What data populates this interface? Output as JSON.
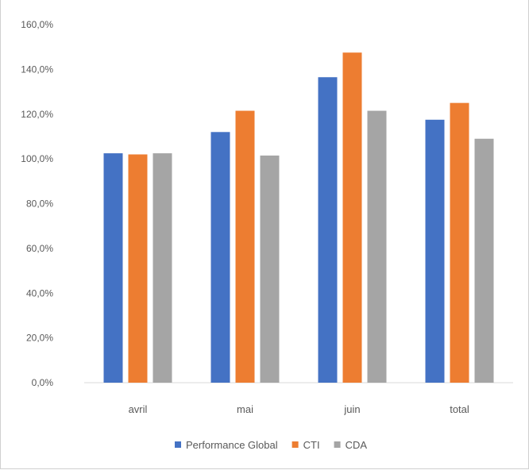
{
  "chart_data": {
    "type": "bar",
    "title": "",
    "xlabel": "",
    "ylabel": "",
    "categories": [
      "avril",
      "mai",
      "juin",
      "total"
    ],
    "series": [
      {
        "name": "Performance Global",
        "color": "#4472c4",
        "values": [
          102.5,
          112.0,
          136.5,
          117.5
        ]
      },
      {
        "name": "CTI",
        "color": "#ed7d31",
        "values": [
          102.0,
          121.5,
          147.5,
          125.0
        ]
      },
      {
        "name": "CDA",
        "color": "#a5a5a5",
        "values": [
          102.5,
          101.5,
          121.5,
          109.0
        ]
      }
    ],
    "ylim": [
      0,
      160
    ],
    "yticks": [
      0,
      20,
      40,
      60,
      80,
      100,
      120,
      140,
      160
    ],
    "ytick_labels": [
      "0,0%",
      "20,0%",
      "40,0%",
      "60,0%",
      "80,0%",
      "100,0%",
      "120,0%",
      "140,0%",
      "160,0%"
    ],
    "grid": false,
    "legend_position": "bottom"
  }
}
